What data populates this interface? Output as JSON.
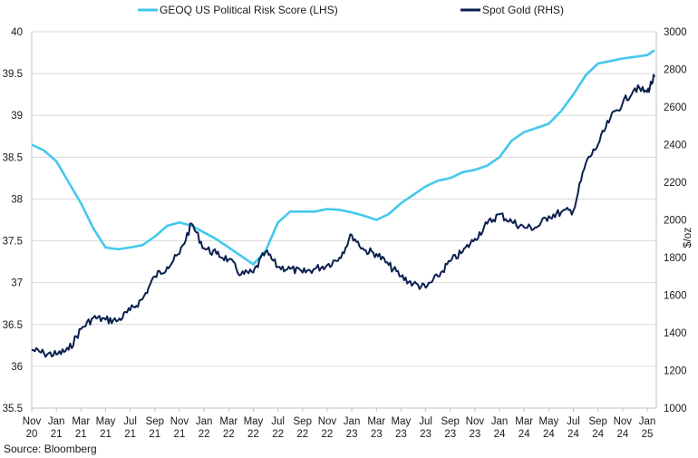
{
  "chart_data": {
    "type": "line",
    "source": "Source: Bloomberg",
    "y_left": {
      "ticks": [
        "35.5",
        "36",
        "36.5",
        "37",
        "37.5",
        "38",
        "38.5",
        "39",
        "39.5",
        "40"
      ],
      "lim": [
        35.5,
        40
      ]
    },
    "y_right": {
      "label": "$/oz",
      "ticks": [
        "1000",
        "1200",
        "1400",
        "1600",
        "1800",
        "2000",
        "2200",
        "2400",
        "2600",
        "2800",
        "3000"
      ],
      "lim": [
        1000,
        3000
      ]
    },
    "x_ticks": [
      {
        "m": "Nov",
        "y": "20"
      },
      {
        "m": "Jan",
        "y": "21"
      },
      {
        "m": "Mar",
        "y": "21"
      },
      {
        "m": "May",
        "y": "21"
      },
      {
        "m": "Jul",
        "y": "21"
      },
      {
        "m": "Sep",
        "y": "21"
      },
      {
        "m": "Nov",
        "y": "21"
      },
      {
        "m": "Jan",
        "y": "22"
      },
      {
        "m": "Mar",
        "y": "22"
      },
      {
        "m": "May",
        "y": "22"
      },
      {
        "m": "Jul",
        "y": "22"
      },
      {
        "m": "Sep",
        "y": "22"
      },
      {
        "m": "Nov",
        "y": "22"
      },
      {
        "m": "Jan",
        "y": "23"
      },
      {
        "m": "Mar",
        "y": "23"
      },
      {
        "m": "May",
        "y": "23"
      },
      {
        "m": "Jul",
        "y": "23"
      },
      {
        "m": "Sep",
        "y": "23"
      },
      {
        "m": "Nov",
        "y": "23"
      },
      {
        "m": "Jan",
        "y": "24"
      },
      {
        "m": "Mar",
        "y": "24"
      },
      {
        "m": "May",
        "y": "24"
      },
      {
        "m": "Jul",
        "y": "24"
      },
      {
        "m": "Sep",
        "y": "24"
      },
      {
        "m": "Nov",
        "y": "24"
      },
      {
        "m": "Jan",
        "y": "25"
      }
    ],
    "grid": true,
    "legend_position": "top",
    "series": [
      {
        "name": "GEOQ US Political Risk Score (LHS)",
        "axis": "left",
        "color": "#44c8ec",
        "x": [
          "2020-11",
          "2020-12",
          "2021-01",
          "2021-02",
          "2021-03",
          "2021-04",
          "2021-05",
          "2021-06",
          "2021-07",
          "2021-08",
          "2021-09",
          "2021-10",
          "2021-11",
          "2021-12",
          "2022-01",
          "2022-02",
          "2022-03",
          "2022-04",
          "2022-05",
          "2022-06",
          "2022-07",
          "2022-08",
          "2022-09",
          "2022-10",
          "2022-11",
          "2022-12",
          "2023-01",
          "2023-02",
          "2023-03",
          "2023-04",
          "2023-05",
          "2023-06",
          "2023-07",
          "2023-08",
          "2023-09",
          "2023-10",
          "2023-11",
          "2023-12",
          "2024-01",
          "2024-02",
          "2024-03",
          "2024-04",
          "2024-05",
          "2024-06",
          "2024-07",
          "2024-08",
          "2024-09",
          "2024-10",
          "2024-11",
          "2024-12",
          "2025-01",
          "2025-02"
        ],
        "values": [
          38.65,
          38.58,
          38.45,
          38.2,
          37.95,
          37.65,
          37.42,
          37.4,
          37.42,
          37.45,
          37.55,
          37.68,
          37.72,
          37.68,
          37.6,
          37.52,
          37.42,
          37.32,
          37.22,
          37.38,
          37.72,
          37.85,
          37.85,
          37.85,
          37.88,
          37.87,
          37.84,
          37.8,
          37.75,
          37.82,
          37.95,
          38.05,
          38.15,
          38.22,
          38.25,
          38.32,
          38.35,
          38.4,
          38.5,
          38.7,
          38.8,
          38.85,
          38.9,
          39.05,
          39.25,
          39.48,
          39.62,
          39.65,
          39.68,
          39.7,
          39.72,
          39.78
        ]
      },
      {
        "name": "Spot Gold (RHS)",
        "axis": "right",
        "color": "#0b1f4e",
        "x": [
          "2020-11",
          "2020-12",
          "2021-01",
          "2021-02",
          "2021-03",
          "2021-04",
          "2021-05",
          "2021-06",
          "2021-07",
          "2021-08",
          "2021-09",
          "2021-10",
          "2021-11",
          "2021-12",
          "2022-01",
          "2022-02",
          "2022-03",
          "2022-04",
          "2022-05",
          "2022-06",
          "2022-07",
          "2022-08",
          "2022-09",
          "2022-10",
          "2022-11",
          "2022-12",
          "2023-01",
          "2023-02",
          "2023-03",
          "2023-04",
          "2023-05",
          "2023-06",
          "2023-07",
          "2023-08",
          "2023-09",
          "2023-10",
          "2023-11",
          "2023-12",
          "2024-01",
          "2024-02",
          "2024-03",
          "2024-04",
          "2024-05",
          "2024-06",
          "2024-07",
          "2024-08",
          "2024-09",
          "2024-10",
          "2024-11",
          "2024-12",
          "2025-01",
          "2025-02"
        ],
        "values": [
          1310,
          1290,
          1285,
          1310,
          1420,
          1480,
          1470,
          1465,
          1520,
          1580,
          1700,
          1750,
          1820,
          1980,
          1850,
          1820,
          1790,
          1710,
          1720,
          1830,
          1750,
          1740,
          1720,
          1740,
          1760,
          1800,
          1920,
          1840,
          1820,
          1760,
          1700,
          1660,
          1640,
          1700,
          1780,
          1830,
          1900,
          1980,
          2030,
          1990,
          1960,
          1960,
          2020,
          2040,
          2050,
          2300,
          2400,
          2540,
          2620,
          2700,
          2680,
          2760
        ]
      }
    ]
  }
}
